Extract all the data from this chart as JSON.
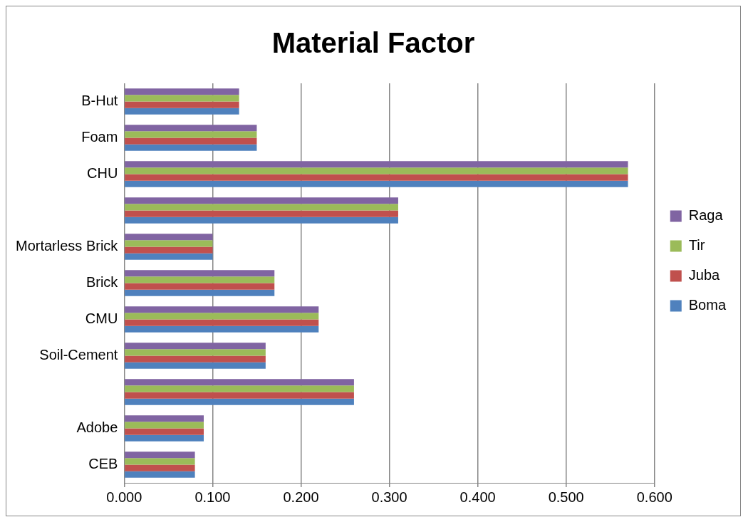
{
  "chart_data": {
    "type": "bar",
    "title": "Material Factor",
    "orientation": "horizontal",
    "categories": [
      "B-Hut",
      "Foam",
      "CHU",
      null,
      "Mortarless Brick",
      "Brick",
      "CMU",
      "Soil-Cement",
      null,
      "Adobe",
      "CEB"
    ],
    "series": [
      {
        "name": "Raga",
        "color": "#8064a2",
        "values": [
          0.13,
          0.15,
          0.57,
          0.31,
          0.1,
          0.17,
          0.22,
          0.16,
          0.26,
          0.09,
          0.08
        ]
      },
      {
        "name": "Tir",
        "color": "#9bbb59",
        "values": [
          0.13,
          0.15,
          0.57,
          0.31,
          0.1,
          0.17,
          0.22,
          0.16,
          0.26,
          0.09,
          0.08
        ]
      },
      {
        "name": "Juba",
        "color": "#c0504d",
        "values": [
          0.13,
          0.15,
          0.57,
          0.31,
          0.1,
          0.17,
          0.22,
          0.16,
          0.26,
          0.09,
          0.08
        ]
      },
      {
        "name": "Boma",
        "color": "#4f81bd",
        "values": [
          0.13,
          0.15,
          0.57,
          0.31,
          0.1,
          0.17,
          0.22,
          0.16,
          0.26,
          0.09,
          0.08
        ]
      }
    ],
    "xlim": [
      0,
      0.6
    ],
    "xticks": [
      {
        "value": 0,
        "label": "0.000"
      },
      {
        "value": 0.1,
        "label": "0.100"
      },
      {
        "value": 0.2,
        "label": "0.200"
      },
      {
        "value": 0.3,
        "label": "0.300"
      },
      {
        "value": 0.4,
        "label": "0.400"
      },
      {
        "value": 0.5,
        "label": "0.500"
      },
      {
        "value": 0.6,
        "label": "0.600"
      }
    ],
    "grid": "x",
    "legend": "right"
  }
}
